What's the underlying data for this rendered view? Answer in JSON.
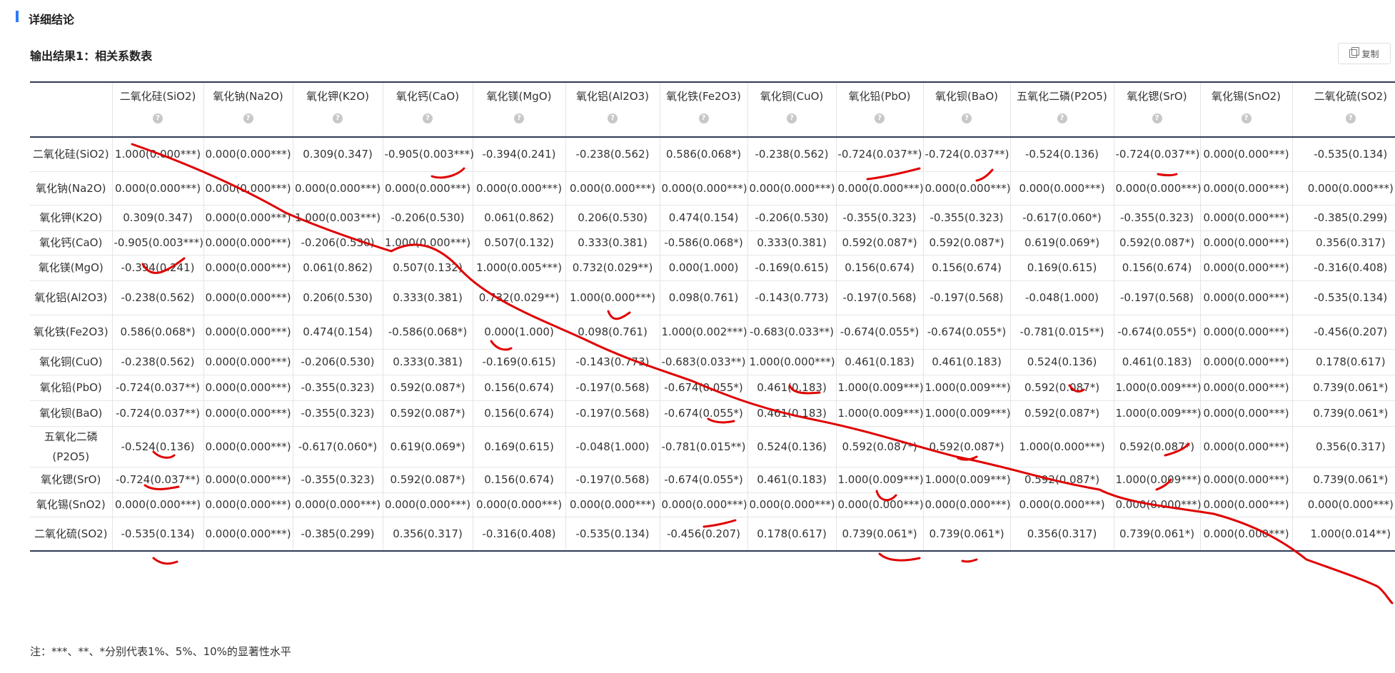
{
  "section_title": "详细结论",
  "result_title": "输出结果1：相关系数表",
  "copy_button": {
    "label": "复制",
    "icon": "copy-icon"
  },
  "help_icon_glyph": "?",
  "table": {
    "corner": "",
    "headers": [
      "二氧化硅(SiO2)",
      "氧化钠(Na2O)",
      "氧化钾(K2O)",
      "氧化钙(CaO)",
      "氧化镁(MgO)",
      "氧化铝(Al2O3)",
      "氧化铁(Fe2O3)",
      "氧化铜(CuO)",
      "氧化铅(PbO)",
      "氧化钡(BaO)",
      "五氧化二磷(P2O5)",
      "氧化锶(SrO)",
      "氧化锡(SnO2)",
      "二氧化硫(SO2)"
    ],
    "rows": [
      {
        "label": "二氧化硅(SiO2)",
        "cells": [
          "1.000(0.000***)",
          "0.000(0.000***)",
          "0.309(0.347)",
          "-0.905(0.003***)",
          "-0.394(0.241)",
          "-0.238(0.562)",
          "0.586(0.068*)",
          "-0.238(0.562)",
          "-0.724(0.037**)",
          "-0.724(0.037**)",
          "-0.524(0.136)",
          "-0.724(0.037**)",
          "0.000(0.000***)",
          "-0.535(0.134)"
        ]
      },
      {
        "label": "氧化钠(Na2O)",
        "cells": [
          "0.000(0.000***)",
          "0.000(0.000***)",
          "0.000(0.000***)",
          "0.000(0.000***)",
          "0.000(0.000***)",
          "0.000(0.000***)",
          "0.000(0.000***)",
          "0.000(0.000***)",
          "0.000(0.000***)",
          "0.000(0.000***)",
          "0.000(0.000***)",
          "0.000(0.000***)",
          "0.000(0.000***)",
          "0.000(0.000***)"
        ]
      },
      {
        "label": "氧化钾(K2O)",
        "cells": [
          "0.309(0.347)",
          "0.000(0.000***)",
          "1.000(0.003***)",
          "-0.206(0.530)",
          "0.061(0.862)",
          "0.206(0.530)",
          "0.474(0.154)",
          "-0.206(0.530)",
          "-0.355(0.323)",
          "-0.355(0.323)",
          "-0.617(0.060*)",
          "-0.355(0.323)",
          "0.000(0.000***)",
          "-0.385(0.299)"
        ]
      },
      {
        "label": "氧化钙(CaO)",
        "cells": [
          "-0.905(0.003***)",
          "0.000(0.000***)",
          "-0.206(0.530)",
          "1.000(0.000***)",
          "0.507(0.132)",
          "0.333(0.381)",
          "-0.586(0.068*)",
          "0.333(0.381)",
          "0.592(0.087*)",
          "0.592(0.087*)",
          "0.619(0.069*)",
          "0.592(0.087*)",
          "0.000(0.000***)",
          "0.356(0.317)"
        ]
      },
      {
        "label": "氧化镁(MgO)",
        "cells": [
          "-0.394(0.241)",
          "0.000(0.000***)",
          "0.061(0.862)",
          "0.507(0.132)",
          "1.000(0.005***)",
          "0.732(0.029**)",
          "0.000(1.000)",
          "-0.169(0.615)",
          "0.156(0.674)",
          "0.156(0.674)",
          "0.169(0.615)",
          "0.156(0.674)",
          "0.000(0.000***)",
          "-0.316(0.408)"
        ]
      },
      {
        "label": "氧化铝(Al2O3)",
        "cells": [
          "-0.238(0.562)",
          "0.000(0.000***)",
          "0.206(0.530)",
          "0.333(0.381)",
          "0.732(0.029**)",
          "1.000(0.000***)",
          "0.098(0.761)",
          "-0.143(0.773)",
          "-0.197(0.568)",
          "-0.197(0.568)",
          "-0.048(1.000)",
          "-0.197(0.568)",
          "0.000(0.000***)",
          "-0.535(0.134)"
        ]
      },
      {
        "label": "氧化铁(Fe2O3)",
        "cells": [
          "0.586(0.068*)",
          "0.000(0.000***)",
          "0.474(0.154)",
          "-0.586(0.068*)",
          "0.000(1.000)",
          "0.098(0.761)",
          "1.000(0.002***)",
          "-0.683(0.033**)",
          "-0.674(0.055*)",
          "-0.674(0.055*)",
          "-0.781(0.015**)",
          "-0.674(0.055*)",
          "0.000(0.000***)",
          "-0.456(0.207)"
        ]
      },
      {
        "label": "氧化铜(CuO)",
        "cells": [
          "-0.238(0.562)",
          "0.000(0.000***)",
          "-0.206(0.530)",
          "0.333(0.381)",
          "-0.169(0.615)",
          "-0.143(0.773)",
          "-0.683(0.033**)",
          "1.000(0.000***)",
          "0.461(0.183)",
          "0.461(0.183)",
          "0.524(0.136)",
          "0.461(0.183)",
          "0.000(0.000***)",
          "0.178(0.617)"
        ]
      },
      {
        "label": "氧化铅(PbO)",
        "cells": [
          "-0.724(0.037**)",
          "0.000(0.000***)",
          "-0.355(0.323)",
          "0.592(0.087*)",
          "0.156(0.674)",
          "-0.197(0.568)",
          "-0.674(0.055*)",
          "0.461(0.183)",
          "1.000(0.009***)",
          "1.000(0.009***)",
          "0.592(0.087*)",
          "1.000(0.009***)",
          "0.000(0.000***)",
          "0.739(0.061*)"
        ]
      },
      {
        "label": "氧化钡(BaO)",
        "cells": [
          "-0.724(0.037**)",
          "0.000(0.000***)",
          "-0.355(0.323)",
          "0.592(0.087*)",
          "0.156(0.674)",
          "-0.197(0.568)",
          "-0.674(0.055*)",
          "0.461(0.183)",
          "1.000(0.009***)",
          "1.000(0.009***)",
          "0.592(0.087*)",
          "1.000(0.009***)",
          "0.000(0.000***)",
          "0.739(0.061*)"
        ]
      },
      {
        "label": "五氧化二磷(P2O5)",
        "cells": [
          "-0.524(0.136)",
          "0.000(0.000***)",
          "-0.617(0.060*)",
          "0.619(0.069*)",
          "0.169(0.615)",
          "-0.048(1.000)",
          "-0.781(0.015**)",
          "0.524(0.136)",
          "0.592(0.087*)",
          "0.592(0.087*)",
          "1.000(0.000***)",
          "0.592(0.087*)",
          "0.000(0.000***)",
          "0.356(0.317)"
        ]
      },
      {
        "label": "氧化锶(SrO)",
        "cells": [
          "-0.724(0.037**)",
          "0.000(0.000***)",
          "-0.355(0.323)",
          "0.592(0.087*)",
          "0.156(0.674)",
          "-0.197(0.568)",
          "-0.674(0.055*)",
          "0.461(0.183)",
          "1.000(0.009***)",
          "1.000(0.009***)",
          "0.592(0.087*)",
          "1.000(0.009***)",
          "0.000(0.000***)",
          "0.739(0.061*)"
        ]
      },
      {
        "label": "氧化锡(SnO2)",
        "cells": [
          "0.000(0.000***)",
          "0.000(0.000***)",
          "0.000(0.000***)",
          "0.000(0.000***)",
          "0.000(0.000***)",
          "0.000(0.000***)",
          "0.000(0.000***)",
          "0.000(0.000***)",
          "0.000(0.000***)",
          "0.000(0.000***)",
          "0.000(0.000***)",
          "0.000(0.000***)",
          "0.000(0.000***)",
          "0.000(0.000***)"
        ]
      },
      {
        "label": "二氧化硫(SO2)",
        "cells": [
          "-0.535(0.134)",
          "0.000(0.000***)",
          "-0.385(0.299)",
          "0.356(0.317)",
          "-0.316(0.408)",
          "-0.535(0.134)",
          "-0.456(0.207)",
          "0.178(0.617)",
          "0.739(0.061*)",
          "0.739(0.061*)",
          "0.356(0.317)",
          "0.739(0.061*)",
          "0.000(0.000***)",
          "1.000(0.014**)"
        ]
      }
    ]
  },
  "note": "注：***、**、*分别代表1%、5%、10%的显著性水平",
  "colors": {
    "accent": "#2f7bf6",
    "border_dark": "#2e3b55",
    "annotation_red": "#e00000"
  }
}
